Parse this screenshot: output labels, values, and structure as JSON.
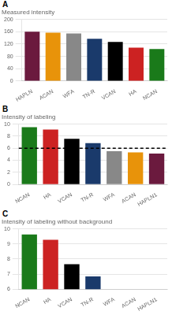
{
  "chart_data": [
    {
      "type": "bar",
      "title": "Measured intensity",
      "annotations": [
        "A"
      ],
      "categories": [
        "HAPLN",
        "ACAN",
        "WFA",
        "TN-R",
        "VCAN",
        "HA",
        "NCAN"
      ],
      "values": [
        160,
        157,
        154,
        137,
        127,
        108,
        104
      ],
      "colors": [
        "#6b1a3e",
        "#e8930a",
        "#888888",
        "#1a3a6b",
        "#000000",
        "#cc2222",
        "#1a7a1a"
      ],
      "ylim": [
        0,
        200
      ],
      "yticks": [
        0,
        40,
        80,
        120,
        160,
        200
      ],
      "grid": true
    },
    {
      "type": "bar",
      "title": "Intensity of labeling",
      "annotations": [
        "B"
      ],
      "categories": [
        "NCAN",
        "HA",
        "VCAN",
        "TN-R",
        "WFA",
        "ACAN",
        "HAPLN1"
      ],
      "values": [
        9.5,
        9.1,
        7.55,
        6.85,
        5.5,
        5.3,
        5.1
      ],
      "colors": [
        "#1a7a1a",
        "#cc2222",
        "#000000",
        "#1a3a6b",
        "#888888",
        "#e8930a",
        "#6b1a3e"
      ],
      "ylim": [
        0,
        10
      ],
      "yticks": [
        0,
        2,
        4,
        6,
        8,
        10
      ],
      "grid": true,
      "hline": {
        "value": 6.0,
        "color": "#000000",
        "line_style": "dashed"
      }
    },
    {
      "type": "bar",
      "title": "Intensity of labeling without background",
      "annotations": [
        "C"
      ],
      "categories": [
        "NCAN",
        "HA",
        "VCAN",
        "TN-R",
        "WFA",
        "ACAN",
        "HAPLN1"
      ],
      "values": [
        9.62,
        9.28,
        7.65,
        6.85,
        null,
        null,
        null
      ],
      "colors": [
        "#1a7a1a",
        "#cc2222",
        "#000000",
        "#1a3a6b",
        "#888888",
        "#e8930a",
        "#6b1a3e"
      ],
      "ylim": [
        6,
        10
      ],
      "yticks": [
        6,
        7,
        8,
        9,
        10
      ],
      "grid": true
    }
  ]
}
